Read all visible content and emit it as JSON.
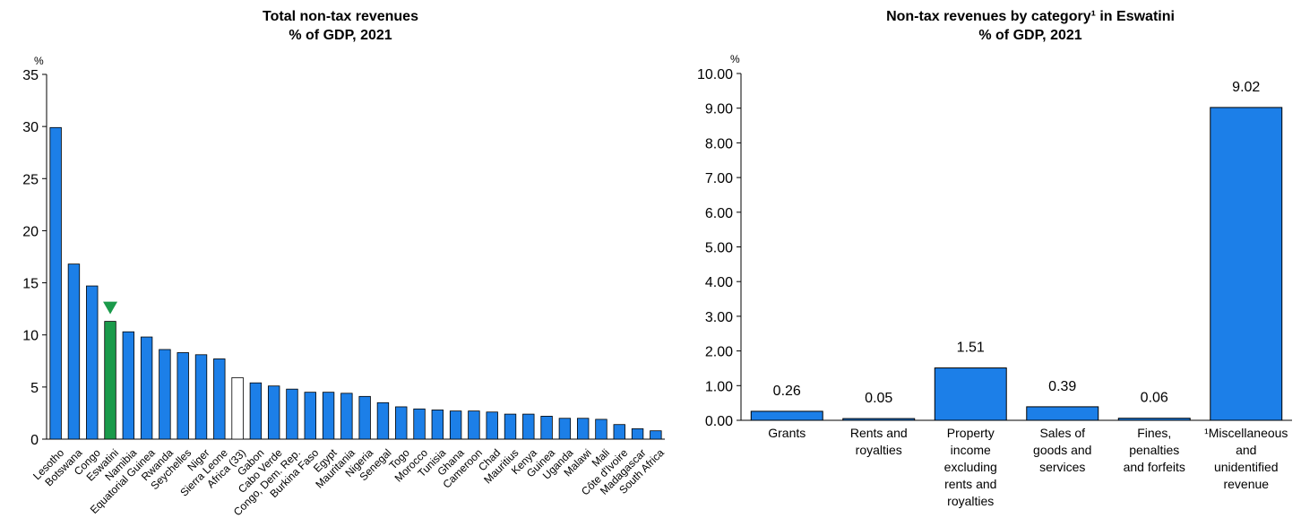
{
  "chart_data": [
    {
      "type": "bar",
      "title": "Total non-tax revenues",
      "subtitle": "% of GDP, 2021",
      "unit": "%",
      "ylim": [
        0,
        35
      ],
      "yticks": [
        0,
        5,
        10,
        15,
        20,
        25,
        30,
        35
      ],
      "grid": false,
      "colors": {
        "default": "#1c7fe8",
        "highlight": "#1a9a4a",
        "average": "#ffffff",
        "marker": "#1a9a4a"
      },
      "highlight_category": "Eswatini",
      "average_category": "Africa (33)",
      "categories": [
        "Lesotho",
        "Botswana",
        "Congo",
        "Eswatini",
        "Namibia",
        "Equatorial Guinea",
        "Rwanda",
        "Seychelles",
        "Niger",
        "Sierra Leone",
        "Africa (33)",
        "Gabon",
        "Cabo Verde",
        "Congo, Dem. Rep.",
        "Burkina Faso",
        "Egypt",
        "Mauritania",
        "Nigeria",
        "Senegal",
        "Togo",
        "Morocco",
        "Tunisia",
        "Ghana",
        "Cameroon",
        "Chad",
        "Mauritius",
        "Kenya",
        "Guinea",
        "Uganda",
        "Malawi",
        "Mali",
        "Côte d'Ivoire",
        "Madagascar",
        "South Africa"
      ],
      "values": [
        29.9,
        16.8,
        14.7,
        11.3,
        10.3,
        9.8,
        8.6,
        8.3,
        8.1,
        7.7,
        5.9,
        5.4,
        5.1,
        4.8,
        4.5,
        4.5,
        4.4,
        4.1,
        3.5,
        3.1,
        2.9,
        2.8,
        2.7,
        2.7,
        2.6,
        2.4,
        2.4,
        2.2,
        2.0,
        2.0,
        1.9,
        1.4,
        1.0,
        0.8
      ]
    },
    {
      "type": "bar",
      "title": "Non-tax revenues by category¹ in Eswatini",
      "subtitle": "% of GDP, 2021",
      "unit": "%",
      "ylim": [
        0,
        10
      ],
      "yticks": [
        "0.00",
        "1.00",
        "2.00",
        "3.00",
        "4.00",
        "5.00",
        "6.00",
        "7.00",
        "8.00",
        "9.00",
        "10.00"
      ],
      "grid": false,
      "colors": {
        "default": "#1c7fe8"
      },
      "categories": [
        [
          "Grants"
        ],
        [
          "Rents and",
          "royalties"
        ],
        [
          "Property",
          "income",
          "excluding",
          "rents and",
          "royalties"
        ],
        [
          "Sales of",
          "goods and",
          "services"
        ],
        [
          "Fines,",
          "penalties",
          "and forfeits"
        ],
        [
          "¹Miscellaneous",
          "and",
          "unidentified",
          "revenue"
        ]
      ],
      "values": [
        0.26,
        0.05,
        1.51,
        0.39,
        0.06,
        9.02
      ],
      "data_labels": [
        "0.26",
        "0.05",
        "1.51",
        "0.39",
        "0.06",
        "9.02"
      ]
    }
  ]
}
